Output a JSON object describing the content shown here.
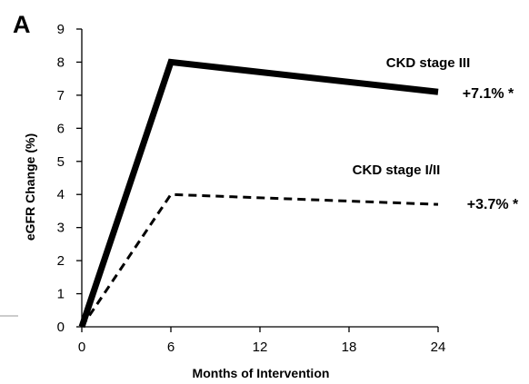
{
  "panel_label": "A",
  "chart_data": {
    "type": "line",
    "title": "",
    "xlabel": "Months of Intervention",
    "ylabel": "eGFR Change (%)",
    "x_ticks": [
      0,
      6,
      12,
      18,
      24
    ],
    "y_ticks": [
      0,
      1,
      2,
      3,
      4,
      5,
      6,
      7,
      8,
      9
    ],
    "xlim": [
      0,
      24
    ],
    "ylim": [
      0,
      9
    ],
    "grid": false,
    "legend": "none",
    "series": [
      {
        "name": "CKD stage III",
        "line_style": "solid-thick",
        "color": "#000000",
        "x": [
          0,
          6,
          24
        ],
        "y": [
          0,
          8.0,
          7.1
        ],
        "end_annotation": "+7.1% *"
      },
      {
        "name": "CKD stage I/II",
        "line_style": "dashed",
        "color": "#000000",
        "x": [
          0,
          6,
          24
        ],
        "y": [
          0,
          4.0,
          3.7
        ],
        "end_annotation": "+3.7% *"
      }
    ]
  }
}
